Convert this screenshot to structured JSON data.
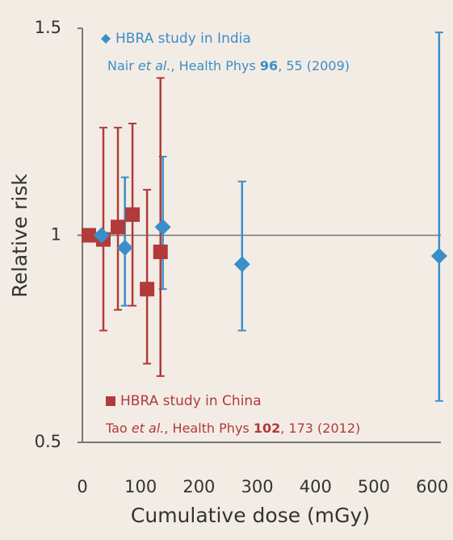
{
  "chart_data": {
    "type": "scatter",
    "x_label": "Cumulative dose (mGy)",
    "y_label": "Relative risk",
    "xlim": [
      0,
      615
    ],
    "ylim": [
      0.5,
      1.5
    ],
    "xticks": [
      0,
      100,
      200,
      300,
      400,
      500,
      600
    ],
    "yticks": [
      0.5,
      1,
      1.5
    ],
    "reference_line": 1,
    "series": [
      {
        "name": "HBRA study in India",
        "color": "#3a8fc8",
        "marker": "diamond",
        "citation": [
          "Nair ",
          "et al.",
          ", Health Phys ",
          "96",
          ", 55 (2009)"
        ],
        "x": [
          33,
          73,
          138,
          274,
          612
        ],
        "values": [
          1.0,
          0.97,
          1.02,
          0.93,
          0.95
        ],
        "lower": [
          null,
          0.83,
          0.87,
          0.77,
          0.6
        ],
        "upper": [
          null,
          1.14,
          1.19,
          1.13,
          1.49
        ]
      },
      {
        "name": "HBRA study in China",
        "color": "#b13b3b",
        "marker": "square",
        "citation": [
          "Tao ",
          "et al.",
          ", Health Phys ",
          "102",
          ", 173 (2012)"
        ],
        "x": [
          11,
          36,
          61,
          86,
          111,
          134
        ],
        "values": [
          1.0,
          0.99,
          1.02,
          1.05,
          0.87,
          0.96
        ],
        "lower": [
          null,
          0.77,
          0.82,
          0.83,
          0.69,
          0.66
        ],
        "upper": [
          null,
          1.26,
          1.26,
          1.27,
          1.11,
          1.38
        ]
      }
    ]
  }
}
